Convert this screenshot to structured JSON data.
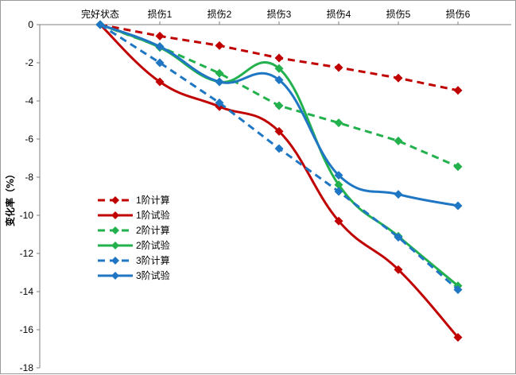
{
  "chart_data": {
    "type": "line",
    "title": "",
    "xlabel": "",
    "ylabel": "变化率（%）",
    "categories": [
      "完好状态",
      "损伤1",
      "损伤2",
      "损伤3",
      "损伤4",
      "损伤5",
      "损伤6"
    ],
    "ylim": [
      -18,
      0
    ],
    "yticks": [
      0,
      -2,
      -4,
      -6,
      -8,
      -10,
      -12,
      -14,
      -16,
      -18
    ],
    "grid": false,
    "legend_position": "left-bottom",
    "series": [
      {
        "name": "1阶计算",
        "color": "#c00000",
        "dashed": true,
        "values": [
          0,
          -0.6,
          -1.1,
          -1.75,
          -2.25,
          -2.8,
          -3.45
        ]
      },
      {
        "name": "1阶试验",
        "color": "#c00000",
        "dashed": false,
        "values": [
          0,
          -3.0,
          -4.3,
          -5.6,
          -10.3,
          -12.85,
          -16.4
        ]
      },
      {
        "name": "2阶计算",
        "color": "#22b14c",
        "dashed": true,
        "values": [
          0,
          -1.15,
          -2.55,
          -4.25,
          -5.15,
          -6.1,
          -7.45
        ]
      },
      {
        "name": "2阶试验",
        "color": "#22b14c",
        "dashed": false,
        "values": [
          0,
          -1.2,
          -3.0,
          -2.3,
          -8.4,
          -11.1,
          -13.7
        ]
      },
      {
        "name": "3阶计算",
        "color": "#1f77c4",
        "dashed": true,
        "values": [
          0,
          -2.0,
          -4.1,
          -6.5,
          -8.75,
          -11.15,
          -13.9
        ]
      },
      {
        "name": "3阶试验",
        "color": "#1f77c4",
        "dashed": false,
        "values": [
          0,
          -1.15,
          -3.0,
          -2.9,
          -7.9,
          -8.9,
          -9.5
        ]
      }
    ]
  }
}
